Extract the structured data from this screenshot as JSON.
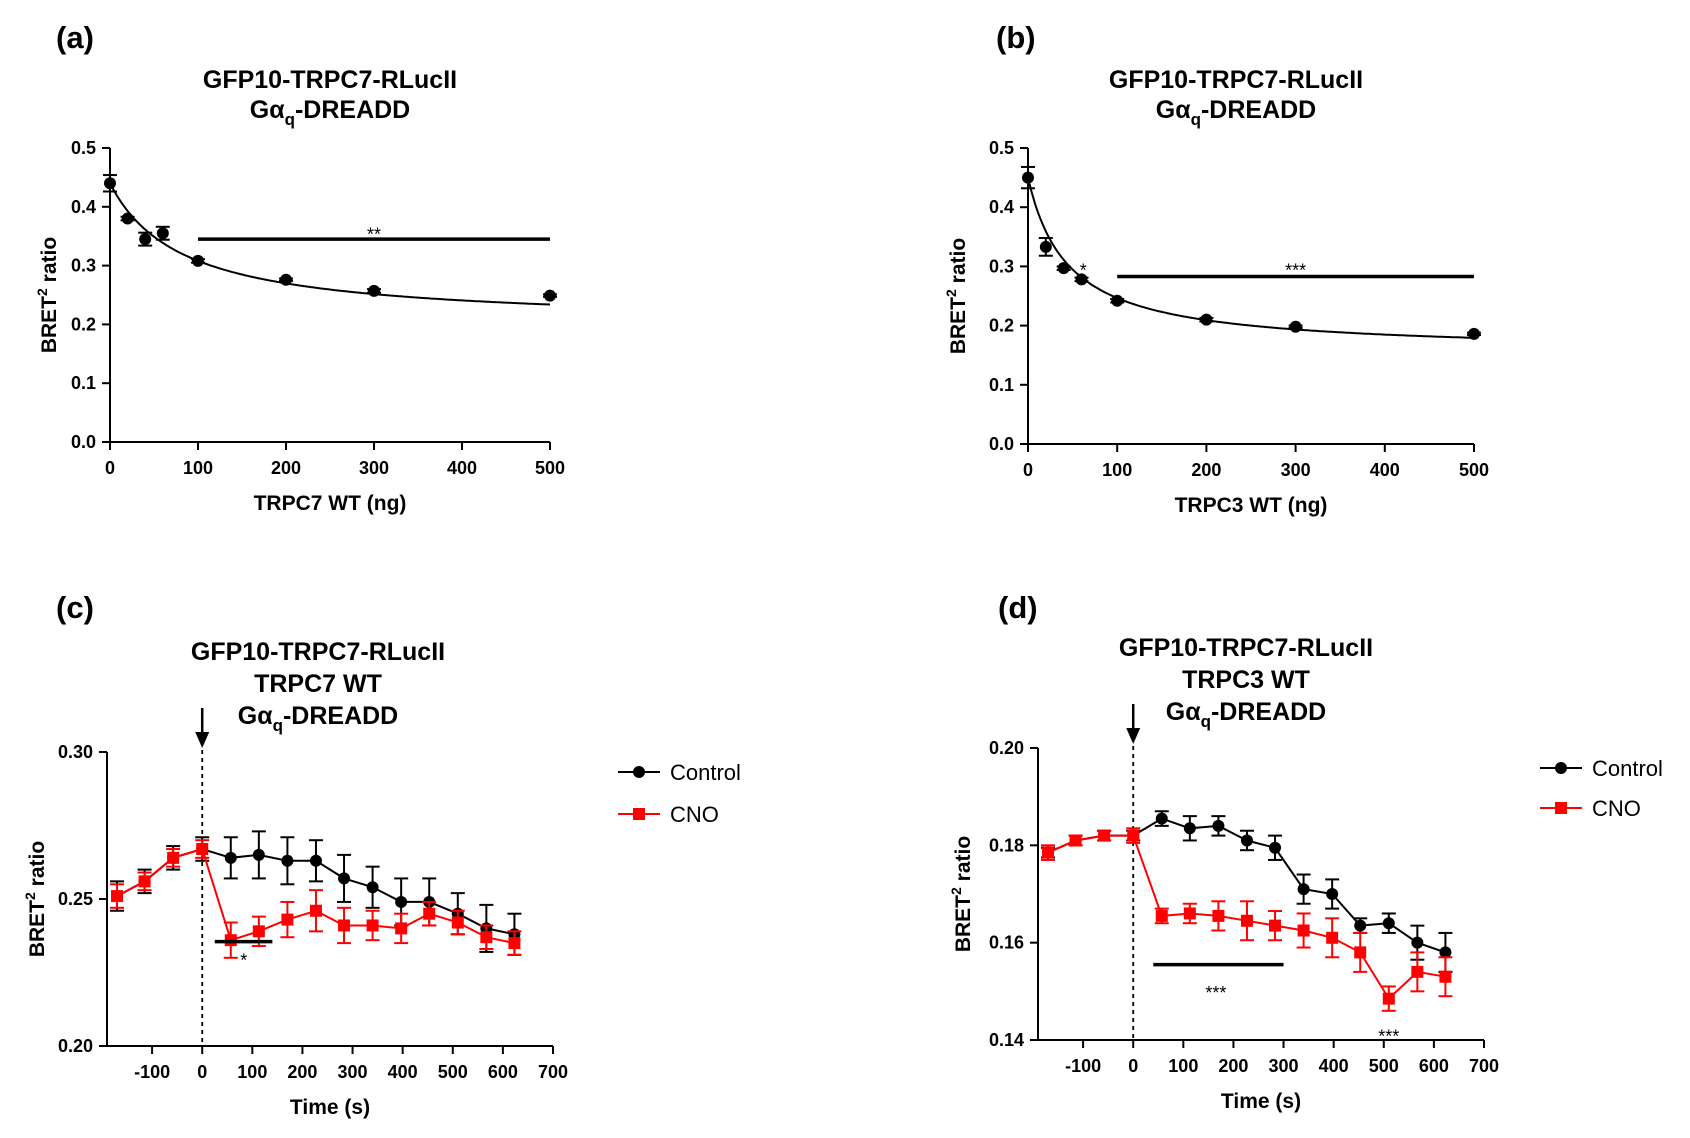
{
  "chart_data": [
    {
      "id": "a",
      "panel_label": "(a)",
      "type": "scatter",
      "title_lines": [
        "GFP10-TRPC7-RLucII",
        "Gα",
        "q",
        "-DREADD"
      ],
      "xlabel": "TRPC7 WT (ng)",
      "ylabel_parts": [
        "BRET",
        "2",
        " ratio"
      ],
      "xlim": [
        0,
        500
      ],
      "ylim": [
        0,
        0.5
      ],
      "xticks": [
        0,
        100,
        200,
        300,
        400,
        500
      ],
      "yticks": [
        0.0,
        0.1,
        0.2,
        0.3,
        0.4,
        0.5
      ],
      "ytick_labels": [
        "0.0",
        "0.1",
        "0.2",
        "0.3",
        "0.4",
        "0.5"
      ],
      "series": [
        {
          "name": "data",
          "color": "#000000",
          "marker": "circle",
          "fit_curve": true,
          "x": [
            0,
            20,
            40,
            60,
            100,
            200,
            300,
            500
          ],
          "y": [
            0.44,
            0.38,
            0.345,
            0.355,
            0.308,
            0.276,
            0.257,
            0.249
          ],
          "err": [
            0.014,
            0.003,
            0.011,
            0.011,
            0.003,
            0.002,
            0.003,
            0.002
          ]
        }
      ],
      "fit": {
        "y0": 0.44,
        "c": 0.2,
        "a": 0.24,
        "k": 82
      },
      "significance": [
        {
          "label": "**",
          "bar_x": [
            100,
            500
          ],
          "bar_y": 0.345,
          "text_x": 300,
          "text_y": 0.36
        }
      ]
    },
    {
      "id": "b",
      "panel_label": "(b)",
      "type": "scatter",
      "title_lines": [
        "GFP10-TRPC7-RLucII",
        "Gα",
        "q",
        "-DREADD"
      ],
      "xlabel": "TRPC3 WT (ng)",
      "ylabel_parts": [
        "BRET",
        "2",
        " ratio"
      ],
      "xlim": [
        0,
        500
      ],
      "ylim": [
        0,
        0.5
      ],
      "xticks": [
        0,
        100,
        200,
        300,
        400,
        500
      ],
      "yticks": [
        0.0,
        0.1,
        0.2,
        0.3,
        0.4,
        0.5
      ],
      "ytick_labels": [
        "0.0",
        "0.1",
        "0.2",
        "0.3",
        "0.4",
        "0.5"
      ],
      "series": [
        {
          "name": "data",
          "color": "#000000",
          "marker": "circle",
          "fit_curve": true,
          "x": [
            0,
            20,
            40,
            60,
            100,
            200,
            300,
            500
          ],
          "y": [
            0.45,
            0.333,
            0.297,
            0.278,
            0.242,
            0.21,
            0.198,
            0.186
          ],
          "err": [
            0.018,
            0.015,
            0.003,
            0.003,
            0.003,
            0.003,
            0.002,
            0.002
          ]
        }
      ],
      "fit": {
        "y0": 0.45,
        "c": 0.155,
        "a": 0.295,
        "k": 45
      },
      "significance": [
        {
          "label": "*",
          "bar_x": null,
          "bar_y": null,
          "text_x": 62,
          "text_y": 0.3
        },
        {
          "label": "***",
          "bar_x": [
            100,
            500
          ],
          "bar_y": 0.283,
          "text_x": 300,
          "text_y": 0.3
        }
      ]
    },
    {
      "id": "c",
      "panel_label": "(c)",
      "type": "line",
      "title_lines": [
        "GFP10-TRPC7-RLucII",
        "TRPC7  WT",
        "Gα",
        "q",
        "-DREADD"
      ],
      "xlabel": "Time (s)",
      "ylabel_parts": [
        "BRET",
        "2",
        " ratio"
      ],
      "xlim": [
        -190,
        700
      ],
      "ylim": [
        0.2,
        0.3
      ],
      "xticks": [
        -100,
        0,
        100,
        200,
        300,
        400,
        500,
        600,
        700
      ],
      "yticks": [
        0.2,
        0.25,
        0.3
      ],
      "ytick_labels": [
        "0.20",
        "0.25",
        "0.30"
      ],
      "arrow_x": 0,
      "legend": [
        {
          "label": "Control",
          "color": "#000000",
          "marker": "circle"
        },
        {
          "label": "CNO",
          "color": "#ff0000",
          "marker": "square"
        }
      ],
      "series": [
        {
          "name": "Control",
          "color": "#000000",
          "marker": "circle",
          "x": [
            -170,
            -115,
            -58,
            0,
            57,
            113,
            170,
            227,
            283,
            340,
            397,
            453,
            510,
            567,
            623
          ],
          "y": [
            0.251,
            0.256,
            0.264,
            0.267,
            0.264,
            0.265,
            0.263,
            0.263,
            0.257,
            0.254,
            0.249,
            0.249,
            0.245,
            0.24,
            0.238
          ],
          "err": [
            0.005,
            0.004,
            0.004,
            0.004,
            0.007,
            0.008,
            0.008,
            0.007,
            0.008,
            0.007,
            0.008,
            0.008,
            0.007,
            0.008,
            0.007
          ]
        },
        {
          "name": "CNO",
          "color": "#ff0000",
          "marker": "square",
          "x": [
            -170,
            -115,
            -58,
            0,
            57,
            113,
            170,
            227,
            283,
            340,
            397,
            453,
            510,
            567,
            623
          ],
          "y": [
            0.251,
            0.256,
            0.264,
            0.267,
            0.236,
            0.239,
            0.243,
            0.246,
            0.241,
            0.241,
            0.24,
            0.245,
            0.242,
            0.237,
            0.235
          ],
          "err": [
            0.004,
            0.003,
            0.003,
            0.003,
            0.006,
            0.005,
            0.006,
            0.007,
            0.006,
            0.005,
            0.005,
            0.004,
            0.004,
            0.004,
            0.004
          ]
        }
      ],
      "significance": [
        {
          "label": "*",
          "bar_x": [
            25,
            140
          ],
          "bar_y": 0.2355,
          "text_x": 83,
          "text_y": 0.2305
        }
      ]
    },
    {
      "id": "d",
      "panel_label": "(d)",
      "type": "line",
      "title_lines": [
        "GFP10-TRPC7-RLucII",
        "TRPC3  WT",
        "Gα",
        "q",
        "-DREADD"
      ],
      "xlabel": "Time (s)",
      "ylabel_parts": [
        "BRET",
        "2",
        " ratio"
      ],
      "xlim": [
        -190,
        700
      ],
      "ylim": [
        0.14,
        0.2
      ],
      "xticks": [
        -100,
        0,
        100,
        200,
        300,
        400,
        500,
        600,
        700
      ],
      "yticks": [
        0.14,
        0.16,
        0.18,
        0.2
      ],
      "ytick_labels": [
        "0.14",
        "0.16",
        "0.18",
        "0.20"
      ],
      "arrow_x": 0,
      "legend": [
        {
          "label": "Control",
          "color": "#000000",
          "marker": "circle"
        },
        {
          "label": "CNO",
          "color": "#ff0000",
          "marker": "square"
        }
      ],
      "series": [
        {
          "name": "Control",
          "color": "#000000",
          "marker": "circle",
          "x": [
            -170,
            -115,
            -58,
            0,
            57,
            113,
            170,
            227,
            283,
            340,
            397,
            453,
            510,
            567,
            623
          ],
          "y": [
            0.1785,
            0.181,
            0.182,
            0.182,
            0.1855,
            0.1835,
            0.184,
            0.181,
            0.1795,
            0.171,
            0.17,
            0.1635,
            0.164,
            0.16,
            0.158
          ],
          "err": [
            0.001,
            0.001,
            0.001,
            0.001,
            0.0015,
            0.0025,
            0.002,
            0.002,
            0.0025,
            0.003,
            0.003,
            0.0015,
            0.002,
            0.0035,
            0.004
          ]
        },
        {
          "name": "CNO",
          "color": "#ff0000",
          "marker": "square",
          "x": [
            -170,
            -115,
            -58,
            0,
            57,
            113,
            170,
            227,
            283,
            340,
            397,
            453,
            510,
            567,
            623
          ],
          "y": [
            0.1785,
            0.181,
            0.182,
            0.182,
            0.1655,
            0.166,
            0.1655,
            0.1645,
            0.1635,
            0.1625,
            0.161,
            0.158,
            0.1485,
            0.154,
            0.153
          ],
          "err": [
            0.0015,
            0.001,
            0.001,
            0.0015,
            0.0015,
            0.002,
            0.003,
            0.004,
            0.003,
            0.0035,
            0.004,
            0.004,
            0.0025,
            0.004,
            0.004
          ]
        }
      ],
      "significance": [
        {
          "label": "***",
          "bar_x": [
            40,
            300
          ],
          "bar_y": 0.1555,
          "text_x": 165,
          "text_y": 0.1505
        },
        {
          "label": "***",
          "bar_x": null,
          "bar_y": null,
          "text_x": 510,
          "text_y": 0.1415
        }
      ]
    }
  ]
}
